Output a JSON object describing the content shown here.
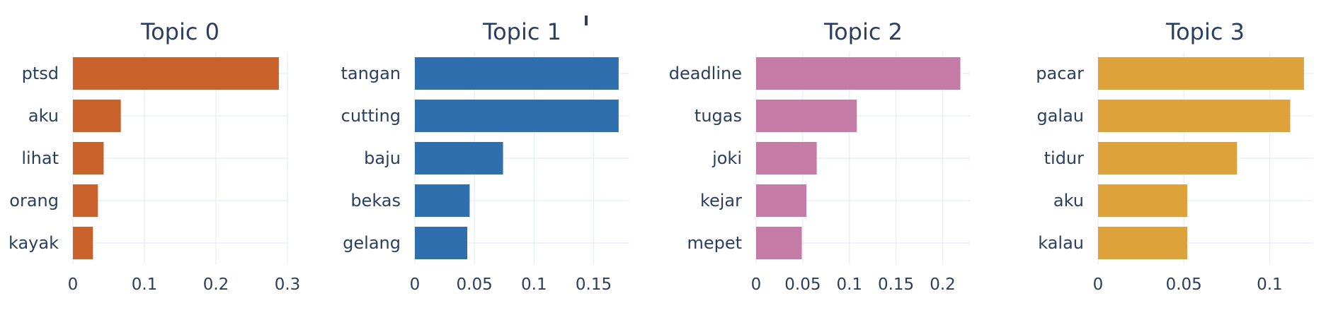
{
  "chart_data": [
    {
      "type": "bar",
      "orientation": "horizontal",
      "title": "Topic 0",
      "color": "#c8622a",
      "categories": [
        "ptsd",
        "aku",
        "lihat",
        "orang",
        "kayak"
      ],
      "values": [
        0.288,
        0.067,
        0.043,
        0.035,
        0.028
      ],
      "xlim": [
        0,
        0.3
      ],
      "xticks": [
        0,
        0.1,
        0.2,
        0.3
      ],
      "xtick_labels": [
        "0",
        "0.1",
        "0.2",
        "0.3"
      ],
      "grid": true
    },
    {
      "type": "bar",
      "orientation": "horizontal",
      "title": "Topic 1",
      "color": "#2f6fad",
      "categories": [
        "tangan",
        "cutting",
        "baju",
        "bekas",
        "gelang"
      ],
      "values": [
        0.171,
        0.171,
        0.074,
        0.046,
        0.044
      ],
      "xlim": [
        0,
        0.18
      ],
      "xticks": [
        0,
        0.05,
        0.1,
        0.15
      ],
      "xtick_labels": [
        "0",
        "0.05",
        "0.1",
        "0.15"
      ],
      "grid": true
    },
    {
      "type": "bar",
      "orientation": "horizontal",
      "title": "Topic 2",
      "color": "#c47ba6",
      "categories": [
        "deadline",
        "tugas",
        "joki",
        "kejar",
        "mepet"
      ],
      "values": [
        0.219,
        0.108,
        0.065,
        0.054,
        0.049
      ],
      "xlim": [
        0,
        0.23
      ],
      "xticks": [
        0,
        0.05,
        0.1,
        0.15,
        0.2
      ],
      "xtick_labels": [
        "0",
        "0.05",
        "0.1",
        "0.15",
        "0.2"
      ],
      "grid": true
    },
    {
      "type": "bar",
      "orientation": "horizontal",
      "title": "Topic 3",
      "color": "#dea23a",
      "categories": [
        "pacar",
        "galau",
        "tidur",
        "aku",
        "kalau"
      ],
      "values": [
        0.12,
        0.112,
        0.081,
        0.052,
        0.052
      ],
      "xlim": [
        0,
        0.125
      ],
      "xticks": [
        0,
        0.05,
        0.1
      ],
      "xtick_labels": [
        "0",
        "0.05",
        "0.1"
      ],
      "grid": true
    }
  ]
}
